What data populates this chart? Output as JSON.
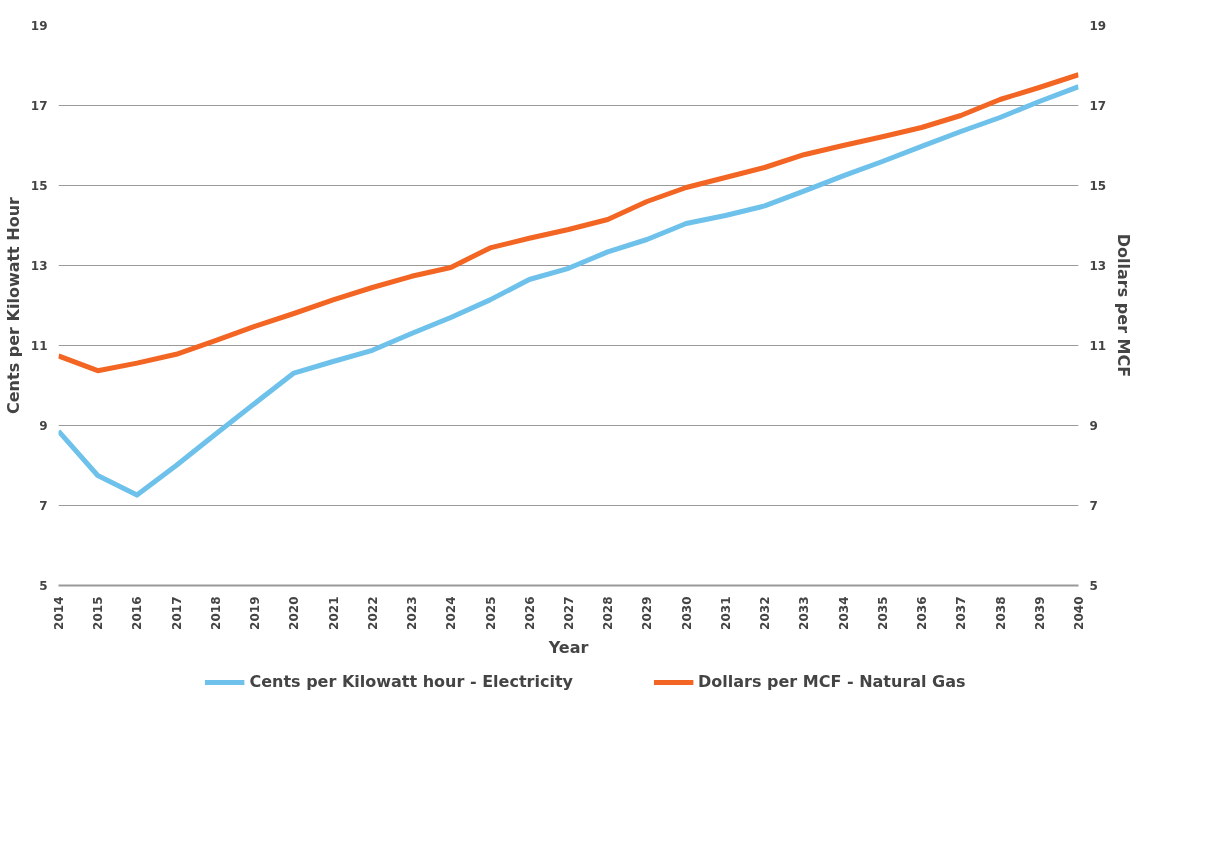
{
  "chart_data": {
    "type": "line",
    "xlabel": "Year",
    "ylabel": "Cents per Kilowatt Hour",
    "y2label": "Dollars per MCF",
    "x": [
      2014,
      2015,
      2016,
      2017,
      2018,
      2019,
      2020,
      2021,
      2022,
      2023,
      2024,
      2025,
      2026,
      2027,
      2028,
      2029,
      2030,
      2031,
      2032,
      2033,
      2034,
      2035,
      2036,
      2037,
      2038,
      2039,
      2040
    ],
    "xlim": [
      2014,
      2040
    ],
    "xticks": [
      2014,
      2015,
      2016,
      2017,
      2018,
      2019,
      2020,
      2021,
      2022,
      2023,
      2024,
      2025,
      2026,
      2027,
      2028,
      2029,
      2030,
      2031,
      2032,
      2033,
      2034,
      2035,
      2036,
      2037,
      2038,
      2039,
      2040
    ],
    "ylim": [
      5,
      19
    ],
    "yticks": [
      5,
      7,
      9,
      11,
      13,
      15,
      17,
      19
    ],
    "y2lim": [
      5,
      19
    ],
    "y2ticks": [
      5,
      7,
      9,
      11,
      13,
      15,
      17,
      19
    ],
    "grid": "y",
    "legend": "bottom",
    "line_style": "solid",
    "marker": "none",
    "series": [
      {
        "name": "Cents per Kilowatt hour - Electricity",
        "color": "#6ec1ea",
        "values": [
          8.86,
          7.75,
          7.26,
          8.0,
          8.78,
          9.55,
          10.31,
          10.6,
          10.88,
          11.3,
          11.7,
          12.14,
          12.65,
          12.93,
          13.34,
          13.65,
          14.05,
          14.25,
          14.49,
          14.86,
          15.24,
          15.6,
          15.98,
          16.35,
          16.7,
          17.1,
          17.47
        ]
      },
      {
        "name": "Dollars per MCF - Natural Gas",
        "color": "#f26522",
        "values": [
          10.74,
          10.37,
          10.56,
          10.78,
          11.12,
          11.48,
          11.8,
          12.14,
          12.45,
          12.73,
          12.95,
          13.44,
          13.68,
          13.9,
          14.15,
          14.6,
          14.95,
          15.2,
          15.45,
          15.77,
          16.0,
          16.22,
          16.45,
          16.75,
          17.15,
          17.45,
          17.77
        ]
      }
    ]
  }
}
